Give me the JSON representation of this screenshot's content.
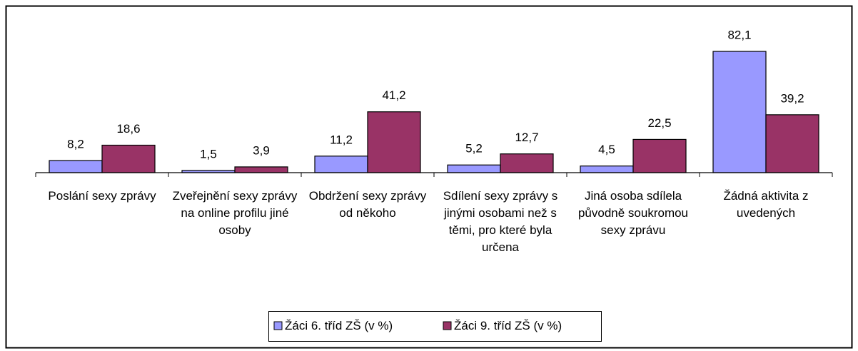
{
  "chart_data": {
    "type": "bar",
    "categories": [
      "Poslání sexy zprávy",
      "Zveřejnění sexy zprávy na online profilu jiné osoby",
      "Obdržení sexy zprávy od někoho",
      "Sdílení sexy zprávy s jinými osobami než s těmi, pro které byla určena",
      "Jiná osoba sdílela původně soukromou sexy zprávu",
      "Žádná aktivita z uvedených"
    ],
    "series": [
      {
        "name": "Žáci 6. tříd ZŠ (v %)",
        "color": "#9999ff",
        "values": [
          8.2,
          1.5,
          11.2,
          5.2,
          4.5,
          82.1
        ],
        "value_labels": [
          "8,2",
          "1,5",
          "11,2",
          "5,2",
          "4,5",
          "82,1"
        ]
      },
      {
        "name": "Žáci 9. tříd ZŠ (v %)",
        "color": "#993366",
        "values": [
          18.6,
          3.9,
          41.2,
          12.7,
          22.5,
          39.2
        ],
        "value_labels": [
          "18,6",
          "3,9",
          "41,2",
          "12,7",
          "22,5",
          "39,2"
        ]
      }
    ],
    "legend": "bottom"
  }
}
